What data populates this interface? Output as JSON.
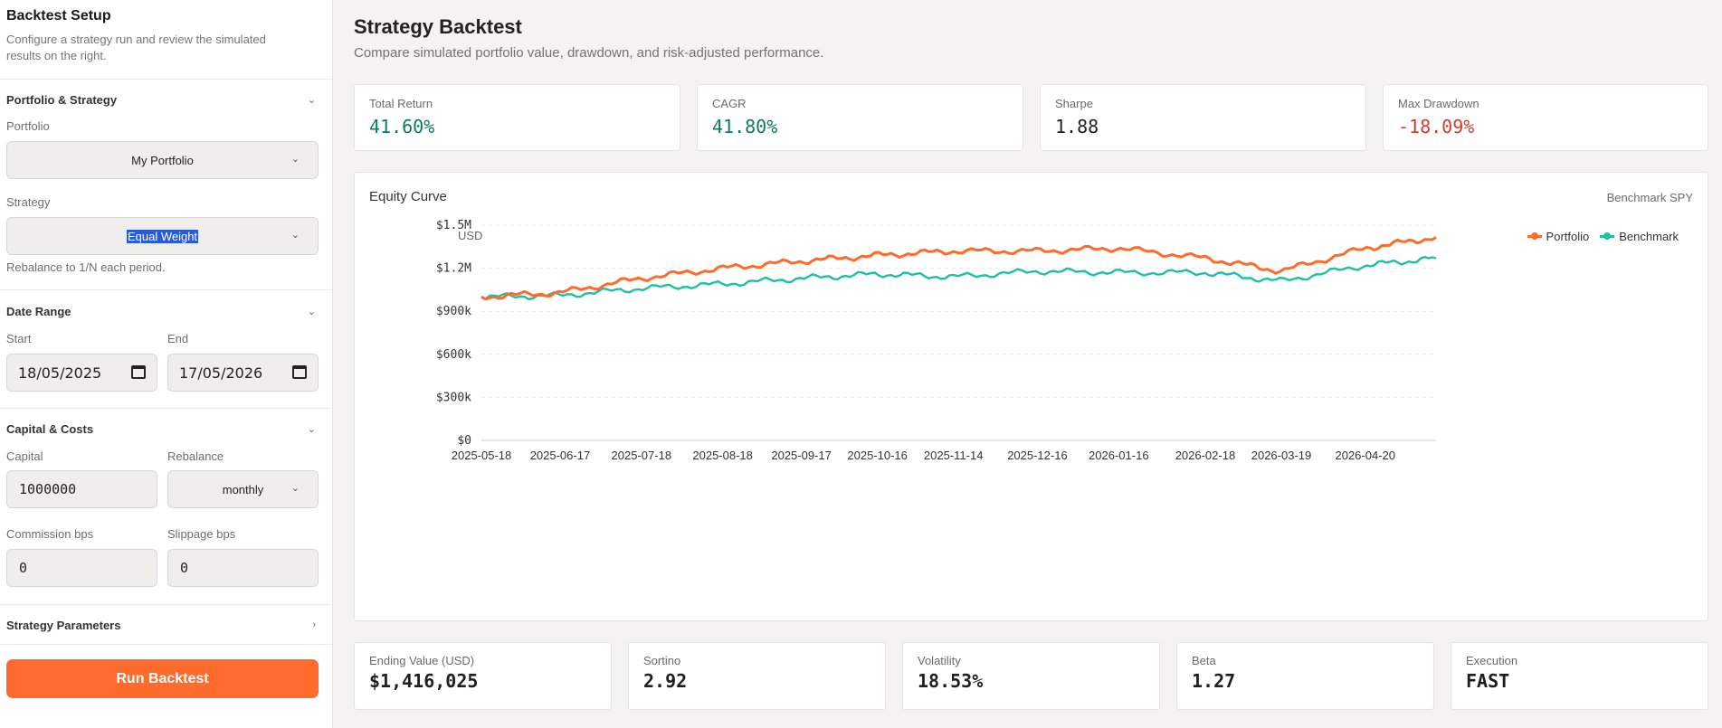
{
  "sidebar": {
    "title": "Backtest Setup",
    "description": "Configure a strategy run and review the simulated results on the right.",
    "portfolio_strategy": {
      "title": "Portfolio & Strategy",
      "portfolio_label": "Portfolio",
      "portfolio_value": "My Portfolio",
      "strategy_label": "Strategy",
      "strategy_value": "Equal Weight",
      "strategy_hint": "Rebalance to 1/N each period."
    },
    "date_range": {
      "title": "Date Range",
      "start_label": "Start",
      "start_value": "18/05/2025",
      "end_label": "End",
      "end_value": "17/05/2026"
    },
    "capital_costs": {
      "title": "Capital & Costs",
      "capital_label": "Capital",
      "capital_value": "1000000",
      "rebalance_label": "Rebalance",
      "rebalance_value": "monthly",
      "commission_label": "Commission bps",
      "commission_value": "0",
      "slippage_label": "Slippage bps",
      "slippage_value": "0"
    },
    "strategy_parameters": {
      "title": "Strategy Parameters"
    },
    "run_button": "Run Backtest"
  },
  "main": {
    "title": "Strategy Backtest",
    "subtitle": "Compare simulated portfolio value, drawdown, and risk-adjusted performance.",
    "metrics": [
      {
        "label": "Total Return",
        "value": "41.60%"
      },
      {
        "label": "CAGR",
        "value": "41.80%"
      },
      {
        "label": "Sharpe",
        "value": "1.88"
      },
      {
        "label": "Max Drawdown",
        "value": "-18.09%"
      }
    ],
    "chart_panel": {
      "title": "Equity Curve",
      "benchmark_label": "Benchmark SPY"
    },
    "bottom_metrics": [
      {
        "label": "Ending Value (USD)",
        "value": "$1,416,025"
      },
      {
        "label": "Sortino",
        "value": "2.92"
      },
      {
        "label": "Volatility",
        "value": "18.53%"
      },
      {
        "label": "Beta",
        "value": "1.27"
      },
      {
        "label": "Execution",
        "value": "FAST"
      }
    ]
  },
  "colors": {
    "accent": "#ff6b2c",
    "portfolio": "#ff6b2c",
    "benchmark": "#1cc2a0",
    "positive": "#0f7a5e",
    "negative": "#d43b2d"
  },
  "chart_data": {
    "type": "line",
    "title": "Equity Curve",
    "ylabel": "USD",
    "yticks": [
      "$0",
      "$300k",
      "$600k",
      "$900k",
      "$1.2M",
      "$1.5M"
    ],
    "ylim": [
      0,
      1500000
    ],
    "x": [
      "2025-05-18",
      "2025-06-17",
      "2025-07-18",
      "2025-08-18",
      "2025-09-17",
      "2025-10-16",
      "2025-11-14",
      "2025-12-16",
      "2026-01-16",
      "2026-02-18",
      "2026-03-19",
      "2026-04-20",
      "2026-05-17"
    ],
    "xticks": [
      "2025-05-18",
      "2025-06-17",
      "2025-07-18",
      "2025-08-18",
      "2025-09-17",
      "2025-10-16",
      "2025-11-14",
      "2025-12-16",
      "2026-01-16",
      "2026-02-18",
      "2026-03-19",
      "2026-04-20"
    ],
    "legend": "top-right",
    "grid": true,
    "series": [
      {
        "name": "Portfolio",
        "values": [
          1000000,
          1030000,
          1130000,
          1200000,
          1250000,
          1290000,
          1320000,
          1320000,
          1340000,
          1270000,
          1180000,
          1340000,
          1416025
        ]
      },
      {
        "name": "Benchmark",
        "values": [
          1000000,
          1010000,
          1060000,
          1090000,
          1130000,
          1160000,
          1140000,
          1180000,
          1170000,
          1170000,
          1110000,
          1220000,
          1270000
        ]
      }
    ]
  }
}
